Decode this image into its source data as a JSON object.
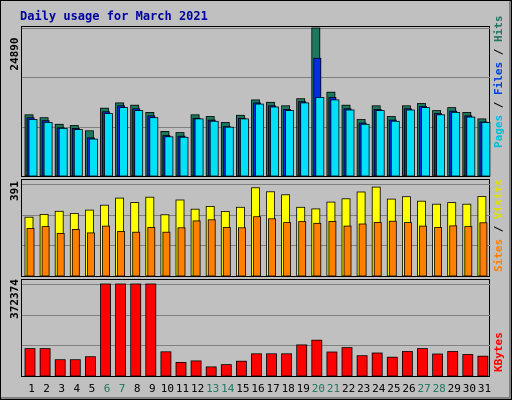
{
  "chart_data": [
    {
      "type": "bar",
      "title": "Daily usage for March 2021",
      "axis_top_label": "24890",
      "x": [
        "1",
        "2",
        "3",
        "4",
        "5",
        "6",
        "7",
        "8",
        "9",
        "10",
        "11",
        "12",
        "13",
        "14",
        "15",
        "16",
        "17",
        "18",
        "19",
        "20",
        "21",
        "22",
        "23",
        "24",
        "25",
        "26",
        "27",
        "28",
        "29",
        "30",
        "31"
      ],
      "weekend_days": [
        "6",
        "7",
        "13",
        "14",
        "20",
        "21",
        "27",
        "28"
      ],
      "ylim": [
        0,
        24890
      ],
      "grid": true,
      "series": [
        {
          "name": "Hits",
          "color": "#1e7860",
          "values": [
            10300,
            9800,
            8700,
            8500,
            7600,
            11400,
            12300,
            11900,
            10700,
            7500,
            7300,
            10300,
            10000,
            9000,
            10200,
            12800,
            12400,
            11800,
            13000,
            24890,
            14100,
            11900,
            9500,
            11800,
            10000,
            11800,
            12200,
            11000,
            11500,
            10700,
            9600
          ]
        },
        {
          "name": "Files",
          "color": "#0030e0",
          "values": [
            9800,
            9300,
            8100,
            8000,
            6400,
            10800,
            11800,
            11300,
            10100,
            6800,
            6700,
            9700,
            9400,
            8300,
            9700,
            12300,
            11800,
            11200,
            12500,
            19800,
            13200,
            11300,
            8900,
            11200,
            9400,
            11300,
            11700,
            10500,
            10900,
            10100,
            9100
          ]
        },
        {
          "name": "Pages",
          "color": "#00e0f8",
          "values": [
            9500,
            9000,
            8000,
            7800,
            6200,
            10500,
            11500,
            11000,
            9800,
            6600,
            6500,
            9600,
            9200,
            8200,
            9600,
            12100,
            11600,
            11000,
            12300,
            13200,
            12800,
            11100,
            8700,
            11000,
            9200,
            11100,
            11500,
            10300,
            10700,
            9900,
            9000
          ]
        }
      ]
    },
    {
      "type": "bar",
      "axis_top_label": "391",
      "ylim": [
        0,
        391
      ],
      "grid": true,
      "series": [
        {
          "name": "Visits",
          "color": "#ffff00",
          "values": [
            250,
            262,
            275,
            266,
            280,
            301,
            331,
            312,
            335,
            260,
            323,
            284,
            296,
            274,
            292,
            375,
            358,
            345,
            292,
            285,
            314,
            328,
            357,
            378,
            327,
            337,
            318,
            305,
            312,
            305,
            338
          ]
        },
        {
          "name": "Sites",
          "color": "#ff8000",
          "values": [
            202,
            210,
            181,
            198,
            183,
            212,
            189,
            186,
            206,
            186,
            205,
            234,
            239,
            206,
            205,
            252,
            243,
            227,
            231,
            224,
            232,
            212,
            221,
            228,
            233,
            227,
            212,
            206,
            213,
            210,
            226
          ]
        }
      ]
    },
    {
      "type": "bar",
      "axis_top_label": "372374",
      "ylim": [
        0,
        372374
      ],
      "grid": true,
      "series": [
        {
          "name": "KBytes",
          "color": "#ff0000",
          "values": [
            111000,
            111000,
            66000,
            66000,
            78000,
            372374,
            372374,
            372374,
            372374,
            98000,
            55000,
            61000,
            37000,
            46000,
            60000,
            90000,
            90000,
            90000,
            126000,
            145000,
            97000,
            115000,
            82000,
            93000,
            76000,
            99000,
            111000,
            89000,
            99000,
            87000,
            80000
          ]
        }
      ]
    }
  ]
}
